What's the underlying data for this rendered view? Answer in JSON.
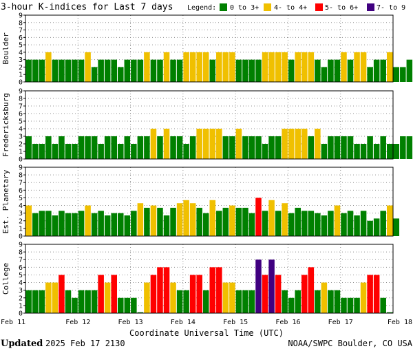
{
  "chart_data": {
    "type": "bar",
    "title": "3-hour K-indices for Last 7 days",
    "legend": {
      "label": "Legend:",
      "entries": [
        {
          "label": "0 to 3+",
          "color": "#008000"
        },
        {
          "label": "4- to 4+",
          "color": "#f0c000"
        },
        {
          "label": "5- to 6+",
          "color": "#ff0000"
        },
        {
          "label": "7- to 9",
          "color": "#400080"
        }
      ]
    },
    "xlabel": "Coordinate Universal Time (UTC)",
    "x_ticks": [
      "Feb 11",
      "Feb 12",
      "Feb 13",
      "Feb 14",
      "Feb 15",
      "Feb 16",
      "Feb 17",
      "Feb 18"
    ],
    "ylim": [
      0,
      9
    ],
    "y_ticks": [
      "0",
      "1",
      "2",
      "3",
      "4",
      "5",
      "6",
      "7",
      "8",
      "9"
    ],
    "interval_hours": 3,
    "grid": true,
    "series": [
      {
        "name": "Boulder",
        "values": [
          3,
          3,
          3,
          4,
          3,
          3,
          3,
          3,
          3,
          4,
          2,
          3,
          3,
          3,
          2,
          3,
          3,
          3,
          4,
          3,
          3,
          4,
          3,
          3,
          4,
          4,
          4,
          4,
          3,
          4,
          4,
          4,
          3,
          3,
          3,
          3,
          4,
          4,
          4,
          4,
          3,
          4,
          4,
          4,
          3,
          2,
          3,
          3,
          4,
          3,
          4,
          4,
          2,
          3,
          3,
          4,
          2,
          2,
          3,
          3,
          2,
          0
        ]
      },
      {
        "name": "Fredericksburg",
        "values": [
          3,
          2,
          2,
          3,
          2,
          3,
          2,
          2,
          3,
          3,
          3,
          2,
          3,
          3,
          2,
          3,
          2,
          3,
          3,
          4,
          3,
          4,
          3,
          3,
          2,
          3,
          4,
          4,
          4,
          4,
          3,
          3,
          4,
          3,
          3,
          3,
          2,
          3,
          3,
          4,
          4,
          4,
          4,
          3,
          4,
          2,
          3,
          3,
          3,
          3,
          2,
          2,
          3,
          2,
          3,
          2,
          2,
          3,
          3,
          3,
          2,
          0
        ]
      },
      {
        "name": "Est. Planetary",
        "values": [
          4,
          3,
          3.3,
          3.3,
          2.7,
          3.3,
          3,
          3,
          3.3,
          4,
          3,
          3.3,
          2.7,
          3,
          3,
          2.7,
          3.3,
          4.3,
          3.7,
          4,
          3.7,
          2.7,
          3.7,
          4.3,
          4.7,
          4.3,
          3.7,
          3,
          4.7,
          3.3,
          3.7,
          4,
          3.7,
          3.7,
          3,
          5,
          3.3,
          4.7,
          3.3,
          4.3,
          3,
          3.7,
          3.3,
          3.3,
          3,
          2.7,
          3.3,
          4,
          3,
          3.3,
          2.7,
          3.3,
          2,
          2.3,
          3.3,
          4,
          2.3
        ]
      },
      {
        "name": "College",
        "values": [
          3,
          3,
          3,
          4,
          4,
          5,
          3,
          2,
          3,
          3,
          3,
          5,
          4,
          5,
          2,
          2,
          2,
          0,
          4,
          5,
          6,
          6,
          4,
          3,
          3,
          5,
          5,
          3,
          6,
          6,
          4,
          4,
          3,
          3,
          3,
          7,
          5,
          7,
          5,
          3,
          2,
          3,
          5,
          6,
          3,
          4,
          3,
          3,
          2,
          2,
          2,
          4,
          5,
          5,
          2,
          0
        ]
      }
    ]
  },
  "footer": {
    "updated_label": "Updated",
    "updated_time": "2025 Feb 17 2130",
    "source": "NOAA/SWPC Boulder, CO USA"
  }
}
